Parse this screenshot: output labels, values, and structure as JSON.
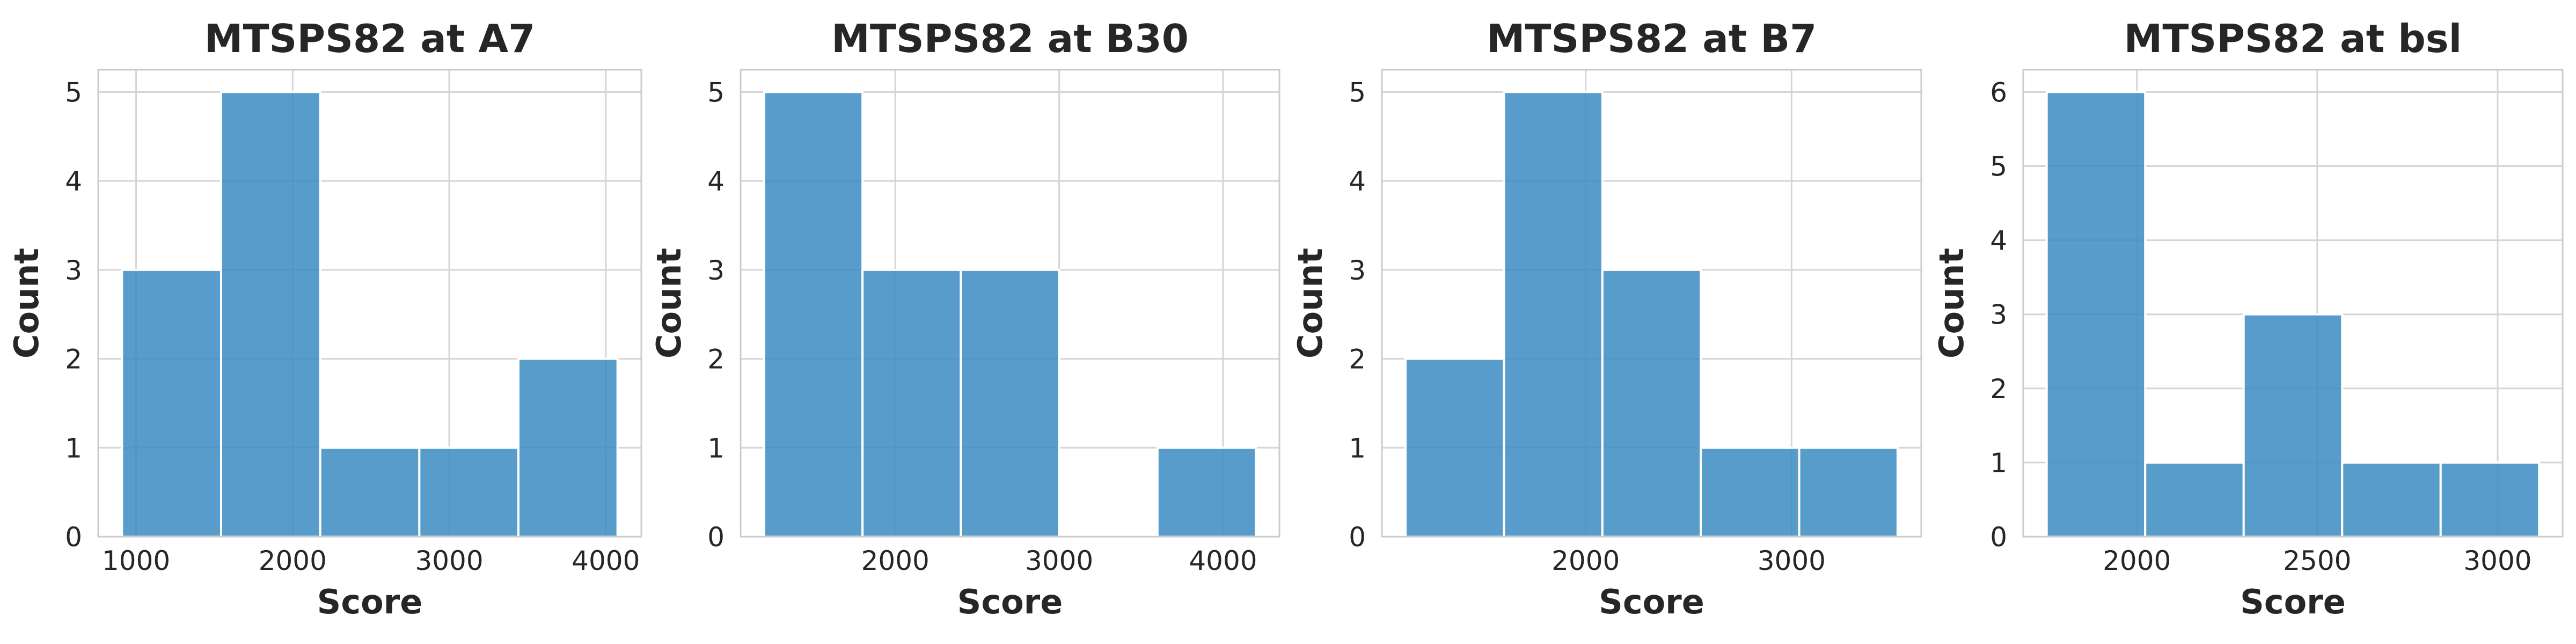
{
  "chart_data": [
    {
      "type": "bar",
      "title": "MTSPS82 at A7",
      "xlabel": "Score",
      "ylabel": "Count",
      "bin_edges": [
        910,
        1543,
        2176,
        2809,
        3442,
        4075
      ],
      "values": [
        3,
        5,
        1,
        1,
        2
      ],
      "xlim": [
        758,
        4227
      ],
      "ylim": [
        0,
        5.25
      ],
      "xticks": [
        1000,
        2000,
        3000,
        4000
      ],
      "yticks": [
        0,
        1,
        2,
        3,
        4,
        5
      ],
      "grid": true,
      "color": "#3b8bc2"
    },
    {
      "type": "bar",
      "title": "MTSPS82 at B30",
      "xlabel": "Score",
      "ylabel": "Count",
      "bin_edges": [
        1200,
        1800,
        2400,
        3000,
        3600,
        4200
      ],
      "values": [
        5,
        3,
        3,
        0,
        1
      ],
      "xlim": [
        1056,
        4344
      ],
      "ylim": [
        0,
        5.25
      ],
      "xticks": [
        2000,
        3000,
        4000
      ],
      "yticks": [
        0,
        1,
        2,
        3,
        4,
        5
      ],
      "grid": true,
      "color": "#3b8bc2"
    },
    {
      "type": "bar",
      "title": "MTSPS82 at B7",
      "xlabel": "Score",
      "ylabel": "Count",
      "bin_edges": [
        1125,
        1603,
        2081,
        2559,
        3037,
        3515
      ],
      "values": [
        2,
        5,
        3,
        1,
        1
      ],
      "xlim": [
        1010,
        3630
      ],
      "ylim": [
        0,
        5.25
      ],
      "xticks": [
        2000,
        3000
      ],
      "yticks": [
        0,
        1,
        2,
        3,
        4,
        5
      ],
      "grid": true,
      "color": "#3b8bc2"
    },
    {
      "type": "bar",
      "title": "MTSPS82 at bsl",
      "xlabel": "Score",
      "ylabel": "Count",
      "bin_edges": [
        1750,
        2023,
        2296,
        2569,
        2842,
        3115
      ],
      "values": [
        6,
        1,
        3,
        1,
        1
      ],
      "xlim": [
        1685,
        3180
      ],
      "ylim": [
        0,
        6.3
      ],
      "xticks": [
        2000,
        2500,
        3000
      ],
      "yticks": [
        0,
        1,
        2,
        3,
        4,
        5,
        6
      ],
      "grid": true,
      "color": "#3b8bc2"
    }
  ]
}
